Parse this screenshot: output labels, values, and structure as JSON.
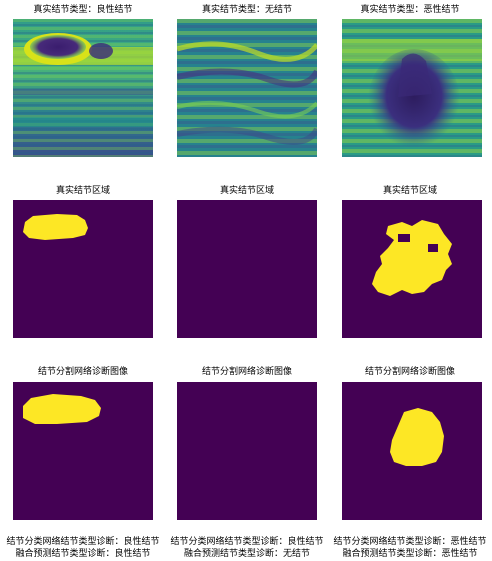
{
  "row1": {
    "titles": [
      "真实结节类型：良性结节",
      "真实结节类型：无结节",
      "真实结节类型：恶性结节"
    ]
  },
  "row2": {
    "titles": [
      "真实结节区域",
      "真实结节区域",
      "真实结节区域"
    ]
  },
  "row3": {
    "titles": [
      "结节分割网络诊断图像",
      "结节分割网络诊断图像",
      "结节分割网络诊断图像"
    ]
  },
  "captions": [
    {
      "line1": "结节分类网络结节类型诊断：良性结节",
      "line2": "融合预测结节类型诊断：良性结节"
    },
    {
      "line1": "结节分类网络结节类型诊断：良性结节",
      "line2": "融合预测结节类型诊断：无结节"
    },
    {
      "line1": "结节分类网络结节类型诊断：恶性结节",
      "line2": "融合预测结节类型诊断：恶性结节"
    }
  ],
  "colors": {
    "mask_background": "#440154",
    "mask_foreground": "#fde725",
    "ultrasound_dark": "#3b2a7a",
    "ultrasound_mid": "#2a9a8a",
    "ultrasound_bright": "#b7de2a"
  }
}
